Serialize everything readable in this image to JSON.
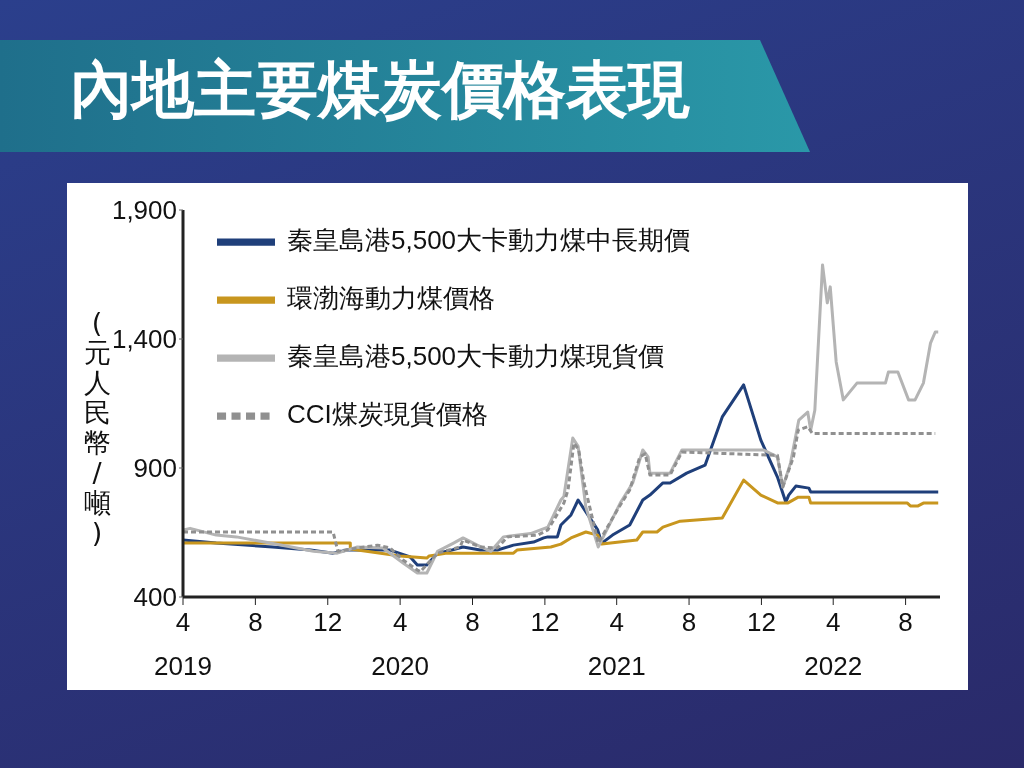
{
  "chart_data": {
    "type": "line",
    "title": "內地主要煤炭價格表現",
    "ylabel": "(元人民幣/噸)",
    "legend": "top left",
    "grid": false,
    "marker": "none",
    "xlim": [
      "2019-04-01",
      "2022-09-28"
    ],
    "xticks": [
      {
        "value": "2019-04",
        "label": "4\n2019"
      },
      {
        "value": "2019-08",
        "label": "8"
      },
      {
        "value": "2019-12",
        "label": "12"
      },
      {
        "value": "2020-04",
        "label": "4\n2020"
      },
      {
        "value": "2020-08",
        "label": "8"
      },
      {
        "value": "2020-12",
        "label": "12"
      },
      {
        "value": "2021-04",
        "label": "4\n2021"
      },
      {
        "value": "2021-08",
        "label": "8"
      },
      {
        "value": "2021-12",
        "label": "12"
      },
      {
        "value": "2022-04",
        "label": "4\n2022"
      },
      {
        "value": "2022-08",
        "label": "8"
      }
    ],
    "ylim": [
      400,
      1900
    ],
    "yticks": [
      400,
      900,
      {
        "value": 1400,
        "label": "1,400"
      },
      {
        "value": 1900,
        "label": "1,900"
      }
    ],
    "series": [
      {
        "name": "秦皇島港5,500大卡動力煤中長期價",
        "color": "#1f3f7a",
        "line_style": "solid",
        "x": [
          "2019-04-01",
          "2019-05-27",
          "2019-08-30",
          "2019-11-02",
          "2019-12-10",
          "2020-01-03",
          "2020-03-15",
          "2020-04-18",
          "2020-04-30",
          "2020-05-16",
          "2020-06-03",
          "2020-06-19",
          "2020-07-16",
          "2020-08-14",
          "2020-09-12",
          "2020-10-09",
          "2020-11-12",
          "2020-11-29",
          "2020-12-06",
          "2020-12-22",
          "2020-12-28",
          "2021-01-14",
          "2021-01-26",
          "2021-02-28",
          "2021-03-07",
          "2021-03-25",
          "2021-04-23",
          "2021-05-15",
          "2021-05-27",
          "2021-06-18",
          "2021-06-30",
          "2021-07-28",
          "2021-08-28",
          "2021-09-26",
          "2021-11-01",
          "2021-11-30",
          "2021-12-28",
          "2022-01-11",
          "2022-01-16",
          "2022-01-28",
          "2022-02-19",
          "2022-02-22",
          "2022-09-25"
        ],
        "values": [
          621,
          609,
          594,
          582,
          570,
          582,
          582,
          555,
          524,
          524,
          570,
          577,
          594,
          582,
          582,
          601,
          613,
          629,
          633,
          633,
          679,
          718,
          776,
          660,
          609,
          640,
          679,
          776,
          795,
          842,
          842,
          880,
          911,
          1098,
          1222,
          1008,
          865,
          768,
          795,
          830,
          822,
          807,
          807
        ]
      },
      {
        "name": "環渤海動力煤價格",
        "color": "#c8961e",
        "line_style": "solid",
        "x": [
          "2019-04-01",
          "2020-01-08",
          "2020-01-08",
          "2020-04-01",
          "2020-05-16",
          "2020-05-20",
          "2020-06-19",
          "2020-10-09",
          "2020-10-15",
          "2020-12-11",
          "2020-12-28",
          "2021-01-14",
          "2021-02-08",
          "2021-02-28",
          "2021-03-07",
          "2021-05-05",
          "2021-05-15",
          "2021-06-08",
          "2021-06-18",
          "2021-07-17",
          "2021-09-26",
          "2021-11-01",
          "2021-11-30",
          "2021-12-29",
          "2022-01-14",
          "2022-02-01",
          "2022-02-19",
          "2022-02-22",
          "2022-08-04",
          "2022-08-09",
          "2022-08-22",
          "2022-08-31",
          "2022-09-25"
        ],
        "values": [
          609,
          609,
          586,
          559,
          551,
          559,
          570,
          570,
          582,
          594,
          605,
          629,
          652,
          640,
          605,
          621,
          652,
          652,
          671,
          694,
          706,
          853,
          795,
          764,
          764,
          787,
          787,
          764,
          764,
          753,
          753,
          764,
          764
        ]
      },
      {
        "name": "秦皇島港5,500大卡動力煤現貨價",
        "color": "#b4b4b4",
        "line_style": "solid",
        "x": [
          "2019-04-01",
          "2019-04-13",
          "2019-05-27",
          "2019-06-30",
          "2019-08-26",
          "2019-11-07",
          "2019-12-17",
          "2020-01-20",
          "2020-03-03",
          "2020-04-06",
          "2020-04-30",
          "2020-05-16",
          "2020-06-03",
          "2020-06-30",
          "2020-07-16",
          "2020-08-09",
          "2020-09-01",
          "2020-09-22",
          "2020-11-07",
          "2020-12-06",
          "2020-12-28",
          "2021-01-02",
          "2021-01-17",
          "2021-01-26",
          "2021-02-08",
          "2021-03-01",
          "2021-04-07",
          "2021-04-28",
          "2021-05-15",
          "2021-05-24",
          "2021-05-27",
          "2021-06-30",
          "2021-07-20",
          "2021-12-04",
          "2021-12-28",
          "2022-01-06",
          "2022-01-19",
          "2022-02-02",
          "2022-02-17",
          "2022-02-22",
          "2022-03-01",
          "2022-03-14",
          "2022-03-22",
          "2022-03-27",
          "2022-04-06",
          "2022-04-18",
          "2022-05-11",
          "2022-06-28",
          "2022-07-03",
          "2022-07-19",
          "2022-08-06",
          "2022-08-17",
          "2022-08-31",
          "2022-09-12",
          "2022-09-20",
          "2022-09-25"
        ],
        "values": [
          660,
          666,
          640,
          633,
          609,
          577,
          570,
          594,
          590,
          532,
          493,
          493,
          577,
          609,
          629,
          601,
          577,
          633,
          646,
          671,
          776,
          790,
          1016,
          984,
          749,
          594,
          764,
          842,
          970,
          943,
          880,
          880,
          970,
          970,
          943,
          826,
          919,
          1086,
          1117,
          1047,
          1124,
          1687,
          1540,
          1602,
          1311,
          1164,
          1229,
          1229,
          1272,
          1272,
          1164,
          1164,
          1229,
          1384,
          1427,
          1427
        ]
      },
      {
        "name": "CCI煤炭現貨價格",
        "color": "#909090",
        "line_style": "dashed",
        "x": [
          "2019-04-01",
          "2019-12-10",
          "2019-12-18",
          "2020-01-20",
          "2020-02-23",
          "2020-03-15",
          "2020-04-06",
          "2020-04-30",
          "2020-05-05",
          "2020-06-03",
          "2020-07-11",
          "2020-07-16",
          "2020-08-14",
          "2020-09-12",
          "2020-09-29",
          "2020-11-19",
          "2020-12-06",
          "2021-01-02",
          "2021-01-09",
          "2021-01-19",
          "2021-01-27",
          "2021-02-05",
          "2021-03-01",
          "2021-04-02",
          "2021-04-23",
          "2021-05-10",
          "2021-05-19",
          "2021-05-27",
          "2021-06-30",
          "2021-07-20",
          "2021-12-28",
          "2022-01-06",
          "2022-01-24",
          "2022-02-01",
          "2022-02-17",
          "2022-02-25",
          "2022-09-20"
        ],
        "values": [
          652,
          652,
          577,
          590,
          601,
          590,
          543,
          505,
          498,
          570,
          594,
          621,
          594,
          590,
          633,
          640,
          660,
          764,
          815,
          997,
          970,
          842,
          609,
          737,
          815,
          943,
          955,
          873,
          873,
          962,
          949,
          826,
          943,
          1047,
          1060,
          1034,
          1034
        ]
      }
    ]
  }
}
